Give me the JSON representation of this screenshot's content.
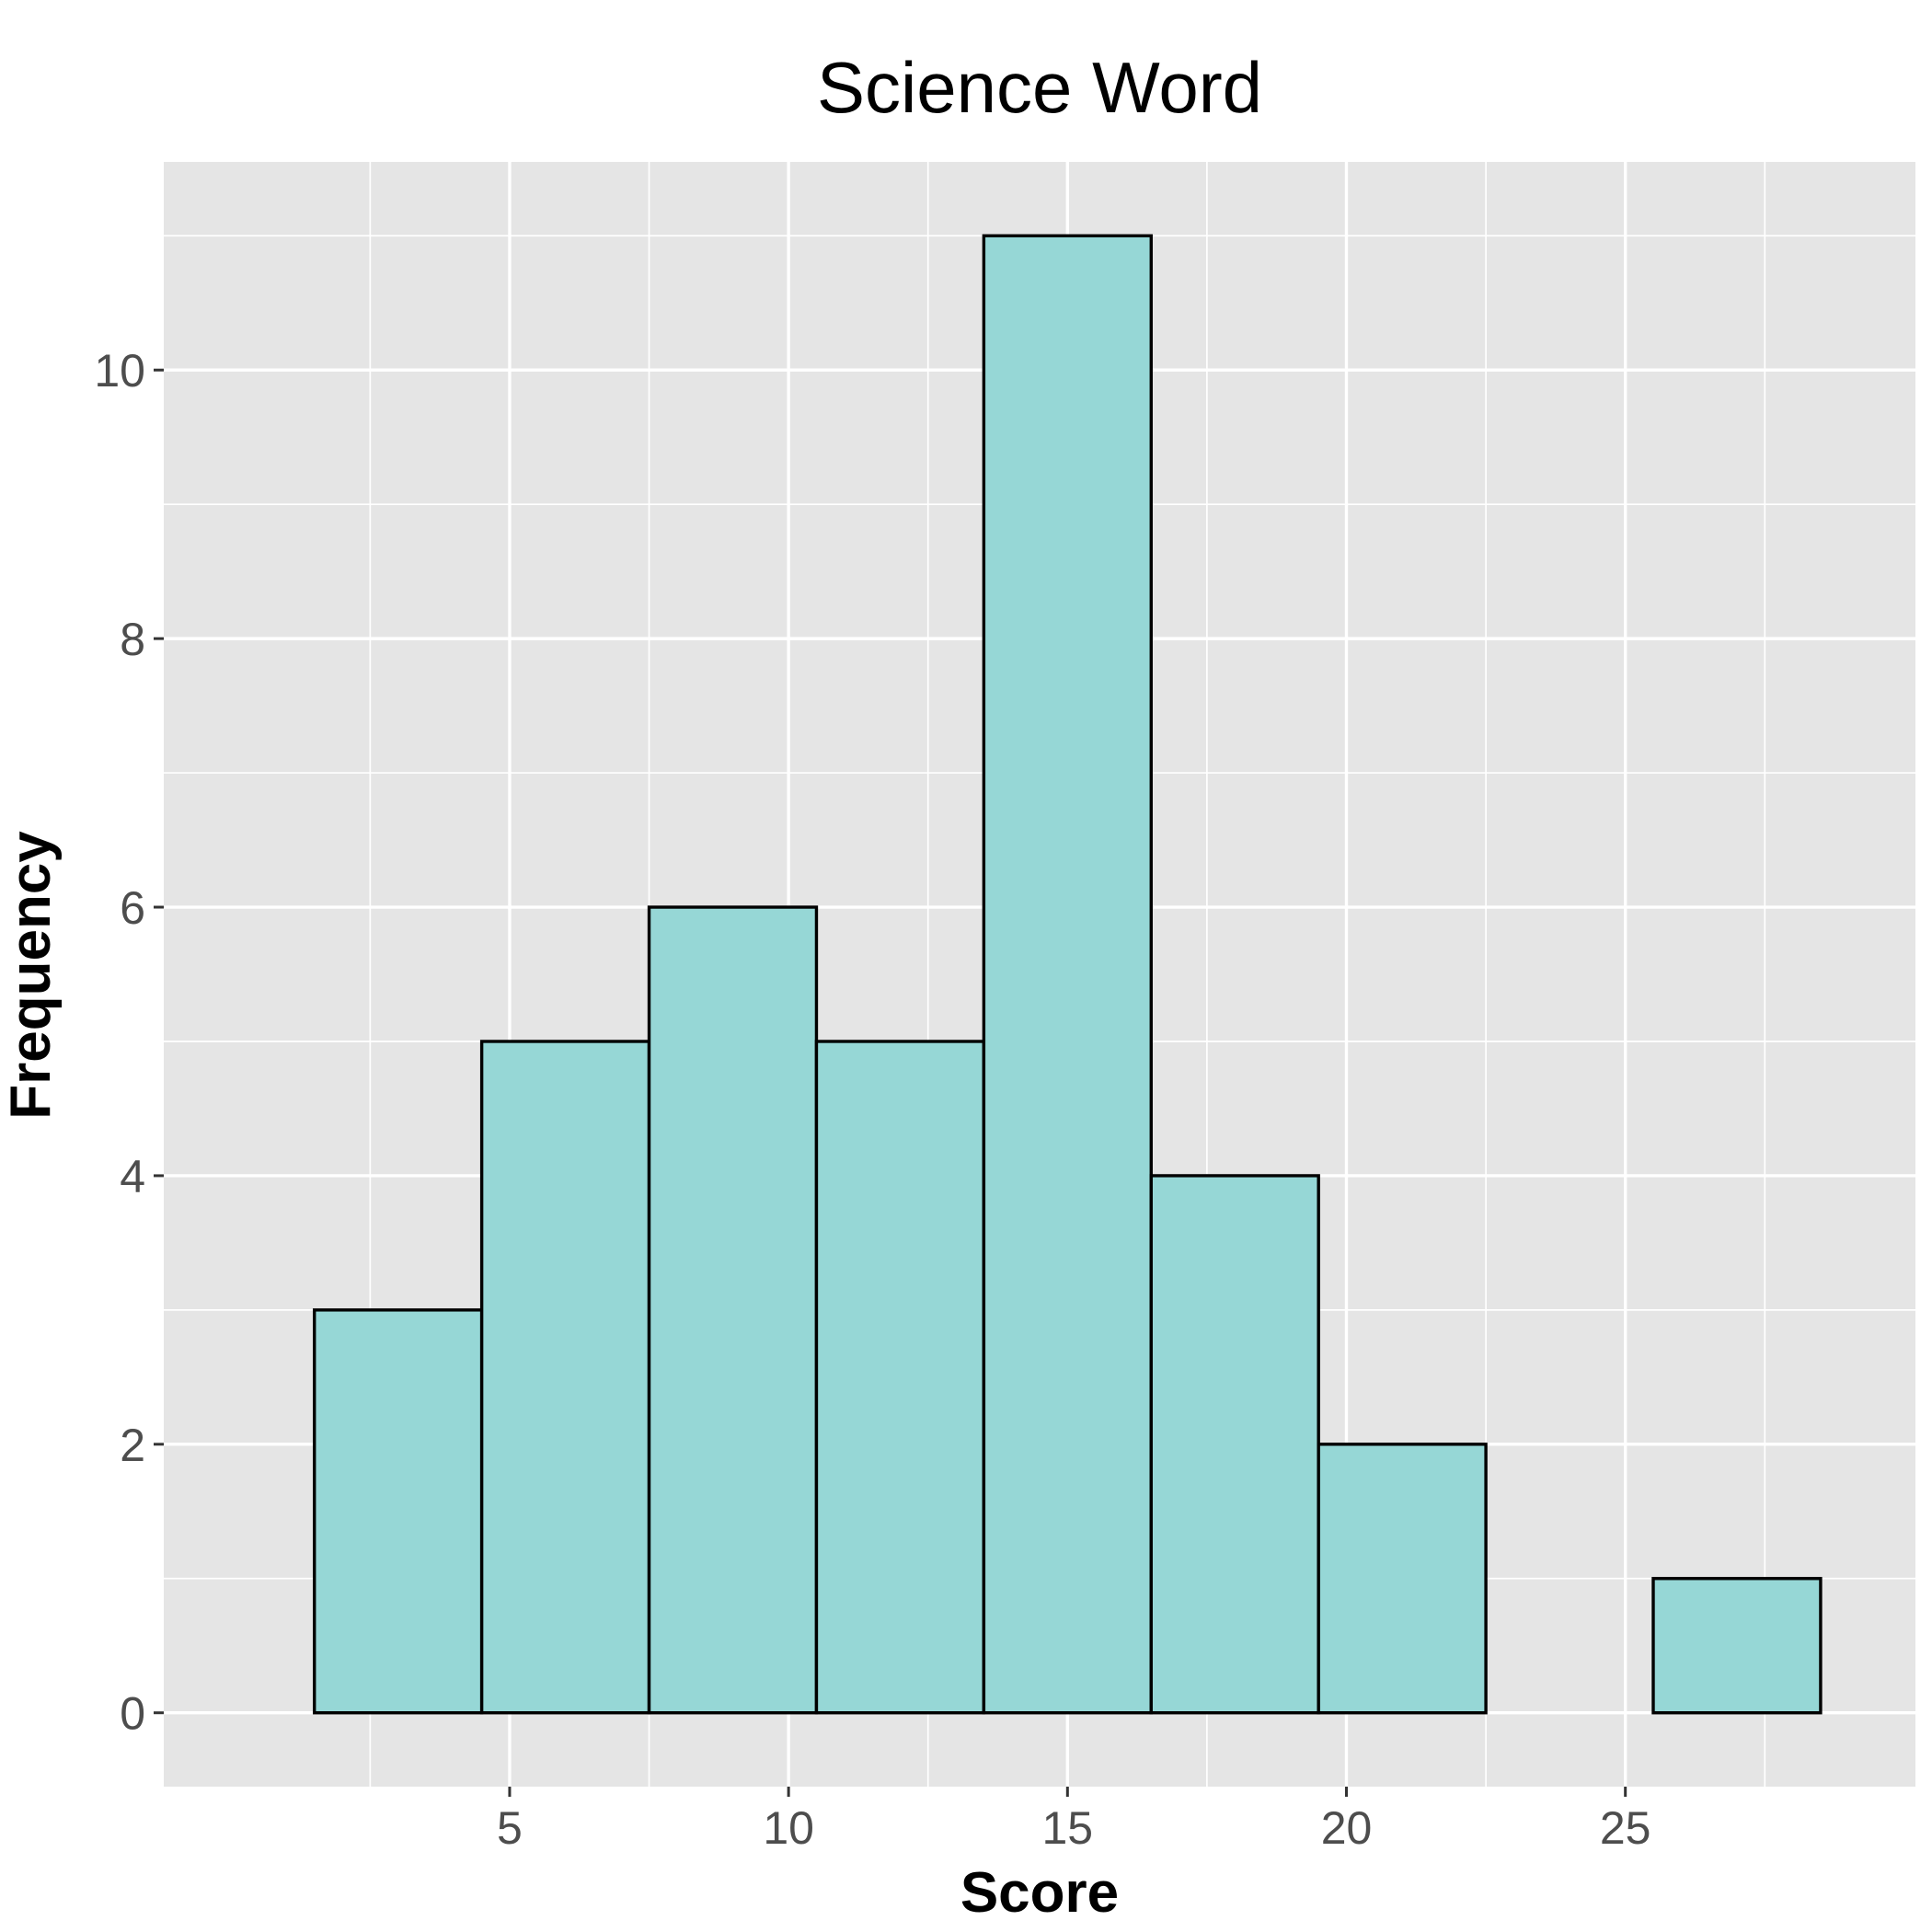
{
  "chart_data": {
    "type": "bar",
    "title": "Science Word",
    "xlabel": "Score",
    "ylabel": "Frequency",
    "bin_width": 3,
    "bins": [
      {
        "x0": 1.5,
        "x1": 4.5,
        "count": 3
      },
      {
        "x0": 4.5,
        "x1": 7.5,
        "count": 5
      },
      {
        "x0": 7.5,
        "x1": 10.5,
        "count": 6
      },
      {
        "x0": 10.5,
        "x1": 13.5,
        "count": 5
      },
      {
        "x0": 13.5,
        "x1": 16.5,
        "count": 11
      },
      {
        "x0": 16.5,
        "x1": 19.5,
        "count": 4
      },
      {
        "x0": 19.5,
        "x1": 22.5,
        "count": 2
      },
      {
        "x0": 22.5,
        "x1": 25.5,
        "count": 0
      },
      {
        "x0": 25.5,
        "x1": 28.5,
        "count": 1
      }
    ],
    "xlim": [
      -1.2,
      30.2
    ],
    "ylim": [
      -0.55,
      11.55
    ],
    "x_ticks": [
      5,
      10,
      15,
      20,
      25
    ],
    "y_ticks": [
      0,
      2,
      4,
      6,
      8,
      10
    ],
    "x_minor": [
      2.5,
      7.5,
      12.5,
      17.5,
      22.5,
      27.5
    ],
    "y_minor": [
      1,
      3,
      5,
      7,
      9,
      11
    ],
    "grid": true,
    "bar_color": "#96d7d6",
    "edge_color": "#000000",
    "panel_color": "#e5e5e5"
  }
}
